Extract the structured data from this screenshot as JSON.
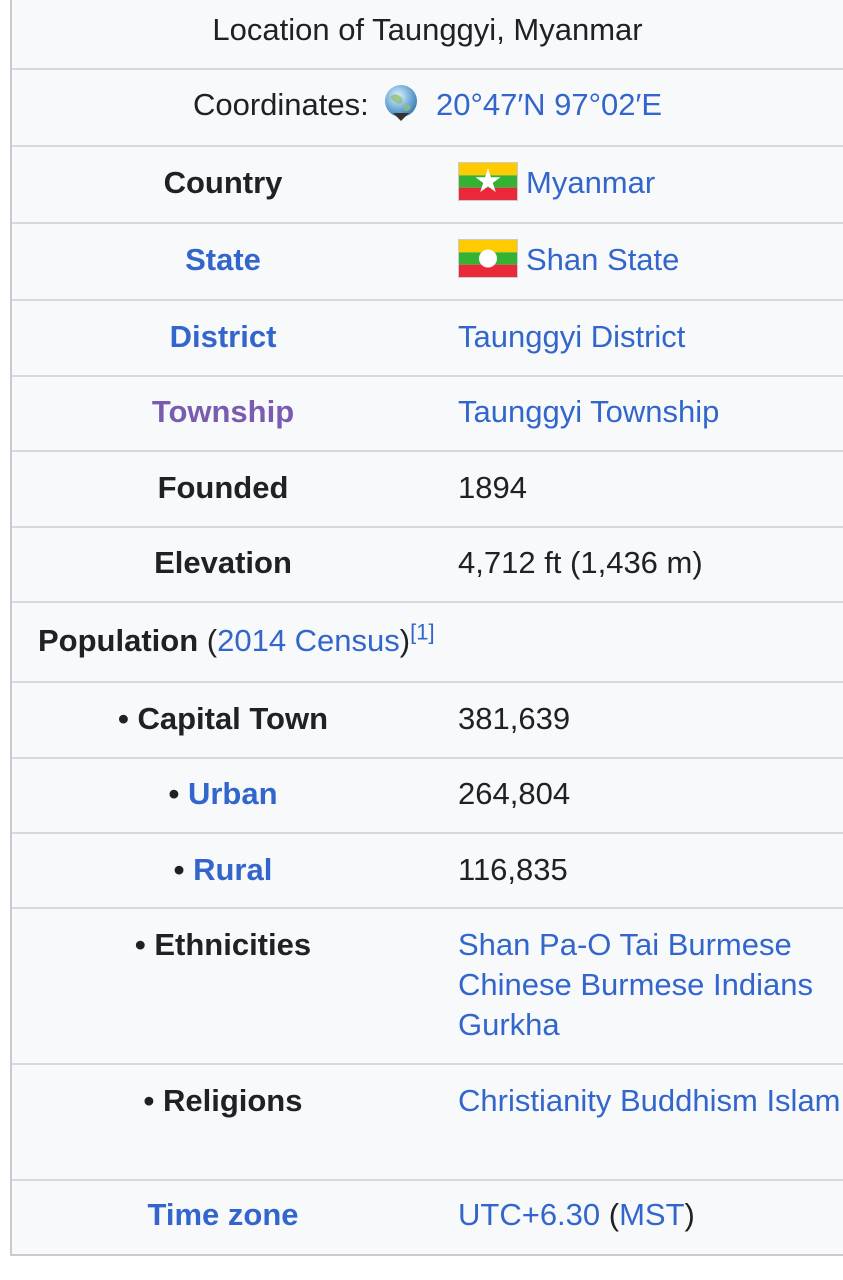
{
  "caption": "Location of Taunggyi, Myanmar",
  "coordinates": {
    "label": "Coordinates:",
    "icon": "globe-icon",
    "value": "20°47′N 97°02′E"
  },
  "rows": [
    {
      "label": "Country",
      "value": "Myanmar",
      "flag": "myanmar-flag-icon"
    },
    {
      "label": "State",
      "value": "Shan State",
      "flag": "shan-state-flag-icon"
    },
    {
      "label": "District",
      "value": "Taunggyi District"
    },
    {
      "label": "Township",
      "value": "Taunggyi Township"
    },
    {
      "label": "Founded",
      "value": "1894"
    },
    {
      "label": "Elevation",
      "value": "4,712 ft (1,436 m)"
    }
  ],
  "population": {
    "label": "Population",
    "open_paren": " (",
    "census_link": "2014 Census",
    "close_paren": ")",
    "ref": "[1]"
  },
  "population_rows": [
    {
      "bullet": "• ",
      "label": "Capital Town",
      "value": "381,639"
    },
    {
      "bullet": "• ",
      "label": "Urban",
      "value": "264,804"
    },
    {
      "bullet": "• ",
      "label": "Rural",
      "value": "116,835"
    }
  ],
  "ethnicities": {
    "bullet": "• ",
    "label": "Ethnicities",
    "items": [
      "Shan",
      "Pa-O",
      "Tai Burmese",
      "Chinese Burmese",
      "Indians",
      "Gurkha"
    ]
  },
  "religions": {
    "bullet": "• ",
    "label": "Religions",
    "items": [
      "Christianity",
      "Buddhism",
      "Islam"
    ]
  },
  "time_zone": {
    "label": "Time zone",
    "value": "UTC+6.30",
    "open_paren": " (",
    "abbr": "MST",
    "close_paren": ")"
  },
  "colors": {
    "link": "#3366cc",
    "visited_link": "#795cb2",
    "text": "#202122",
    "background": "#f8f9fa",
    "border": "#c8ccd1"
  }
}
